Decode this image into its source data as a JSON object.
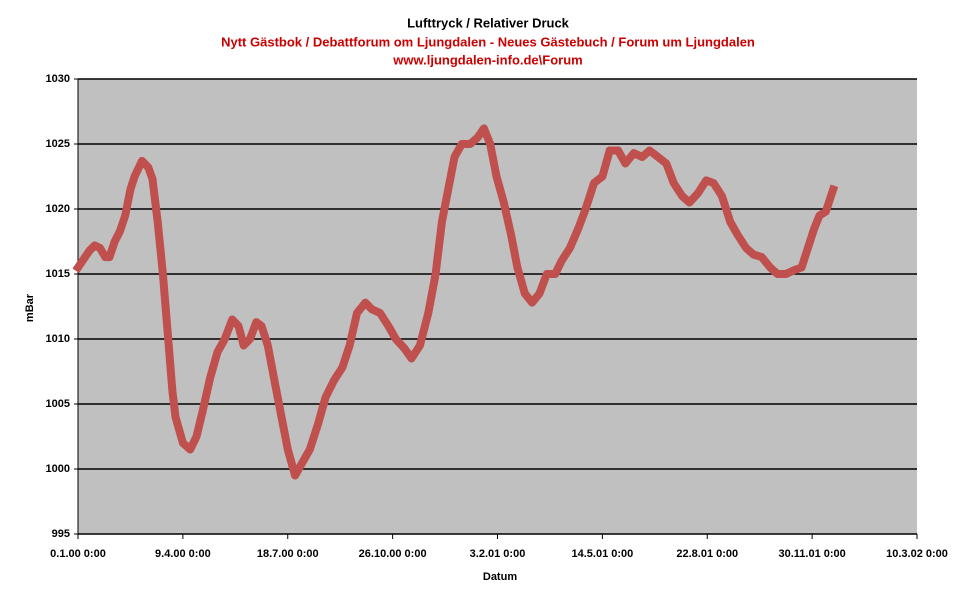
{
  "chart_data": {
    "type": "line",
    "title": "Lufttryck / Relativer Druck",
    "subtitle": "Nytt Gästbok / Debattforum om Ljungdalen - Neues Gästebuch / Forum um Ljungdalen",
    "subtitle2": "www.ljungdalen-info.de\\Forum",
    "x_label": "Datum",
    "y_label": "mBar",
    "xlim": [
      0,
      800
    ],
    "xticks": [
      {
        "value": 0,
        "label": "0.1.00 0:00"
      },
      {
        "value": 100,
        "label": "9.4.00 0:00"
      },
      {
        "value": 200,
        "label": "18.7.00 0:00"
      },
      {
        "value": 300,
        "label": "26.10.00 0:00"
      },
      {
        "value": 400,
        "label": "3.2.01 0:00"
      },
      {
        "value": 500,
        "label": "14.5.01 0:00"
      },
      {
        "value": 600,
        "label": "22.8.01 0:00"
      },
      {
        "value": 700,
        "label": "30.11.01 0:00"
      },
      {
        "value": 800,
        "label": "10.3.02 0:00"
      }
    ],
    "ylim": [
      995,
      1030
    ],
    "yticks": [
      995,
      1000,
      1005,
      1010,
      1015,
      1020,
      1025,
      1030
    ],
    "grid": true,
    "series": [
      {
        "name": "Lufttryck",
        "color": "#c0504d",
        "x": [
          0,
          11,
          16,
          21,
          26,
          30,
          35,
          40,
          45,
          50,
          54,
          61,
          67,
          71,
          76,
          81,
          86,
          90,
          93,
          100,
          107,
          113,
          119,
          126,
          133,
          140,
          147,
          153,
          158,
          164,
          170,
          175,
          181,
          188,
          194,
          200,
          207,
          214,
          221,
          229,
          236,
          244,
          252,
          259,
          266,
          274,
          280,
          288,
          296,
          303,
          311,
          318,
          326,
          334,
          341,
          347,
          353,
          359,
          366,
          374,
          381,
          387,
          393,
          399,
          406,
          413,
          419,
          426,
          433,
          440,
          447,
          455,
          461,
          469,
          477,
          484,
          492,
          500,
          507,
          515,
          522,
          530,
          538,
          545,
          553,
          561,
          568,
          576,
          583,
          591,
          599,
          606,
          614,
          622,
          629,
          637,
          644,
          652,
          660,
          667,
          675,
          683,
          690,
          696,
          702,
          707,
          713,
          720
        ],
        "values": [
          1015.5,
          1016.8,
          1017.2,
          1017,
          1016.3,
          1016.3,
          1017.5,
          1018.3,
          1019.5,
          1021.5,
          1022.5,
          1023.7,
          1023.2,
          1022.3,
          1019,
          1015,
          1010,
          1006,
          1004,
          1002,
          1001.5,
          1002.5,
          1004.5,
          1007,
          1009,
          1010,
          1011.5,
          1011,
          1009.5,
          1010,
          1011.3,
          1011,
          1009.5,
          1006.5,
          1004,
          1001.5,
          999.5,
          1000.5,
          1001.5,
          1003.5,
          1005.5,
          1006.8,
          1007.8,
          1009.5,
          1012,
          1012.8,
          1012.3,
          1012,
          1011,
          1010,
          1009.3,
          1008.5,
          1009.5,
          1012,
          1015,
          1019,
          1021.5,
          1024,
          1025,
          1025,
          1025.5,
          1026.2,
          1025,
          1022.5,
          1020.5,
          1018,
          1015.5,
          1013.5,
          1012.8,
          1013.5,
          1015,
          1015,
          1016,
          1017,
          1018.5,
          1020,
          1022,
          1022.5,
          1024.5,
          1024.5,
          1023.5,
          1024.3,
          1024,
          1024.5,
          1024,
          1023.5,
          1022,
          1021,
          1020.5,
          1021.2,
          1022.2,
          1022,
          1021,
          1019,
          1018,
          1017,
          1016.5,
          1016.3,
          1015.5,
          1015,
          1015,
          1015.3,
          1015.5,
          1017,
          1018.5,
          1019.5,
          1019.8,
          1021.5
        ]
      }
    ]
  }
}
